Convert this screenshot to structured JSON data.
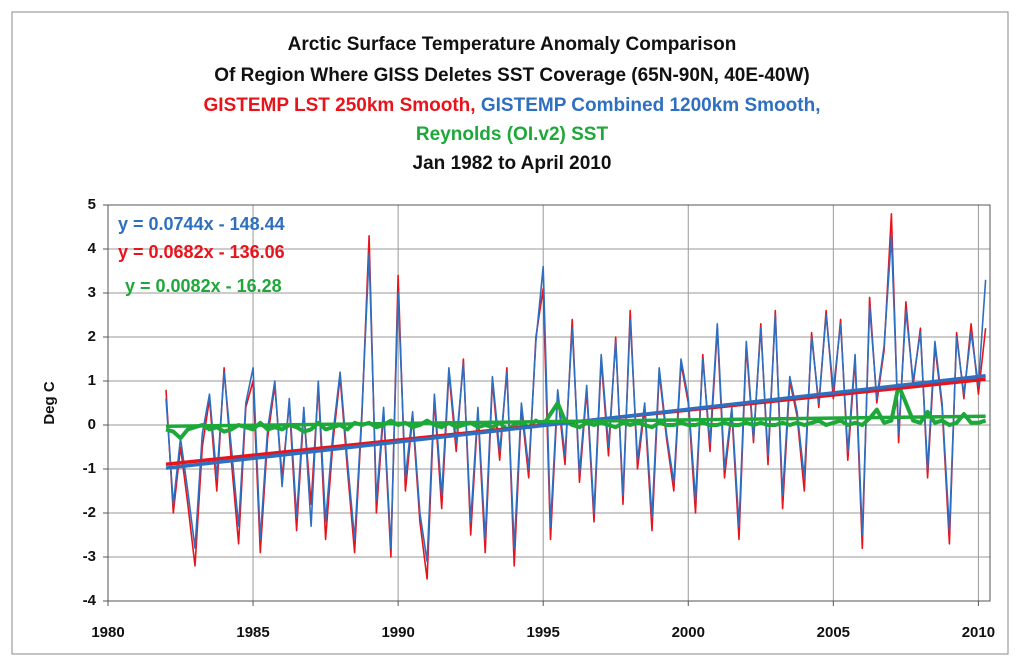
{
  "chart_data": {
    "type": "line",
    "title": [
      "Arctic Surface Temperature Anomaly Comparison",
      "Of Region Where GISS Deletes SST Coverage (65N-90N, 40E-40W)"
    ],
    "subtitle": "Jan 1982 to April 2010",
    "name_separator": ",",
    "ylabel": "Deg C",
    "xlim": [
      1980,
      2010.4
    ],
    "ylim": [
      -4,
      5
    ],
    "xticks": [
      1980,
      1985,
      1990,
      1995,
      2000,
      2005,
      2010
    ],
    "yticks": [
      -4,
      -3,
      -2,
      -1,
      0,
      1,
      2,
      3,
      4,
      5
    ],
    "grid": true,
    "x": [
      1982,
      1982.25,
      1982.5,
      1982.75,
      1983,
      1983.25,
      1983.5,
      1983.75,
      1984,
      1984.25,
      1984.5,
      1984.75,
      1985,
      1985.25,
      1985.5,
      1985.75,
      1986,
      1986.25,
      1986.5,
      1986.75,
      1987,
      1987.25,
      1987.5,
      1987.75,
      1988,
      1988.25,
      1988.5,
      1988.75,
      1989,
      1989.25,
      1989.5,
      1989.75,
      1990,
      1990.25,
      1990.5,
      1990.75,
      1991,
      1991.25,
      1991.5,
      1991.75,
      1992,
      1992.25,
      1992.5,
      1992.75,
      1993,
      1993.25,
      1993.5,
      1993.75,
      1994,
      1994.25,
      1994.5,
      1994.75,
      1995,
      1995.25,
      1995.5,
      1995.75,
      1996,
      1996.25,
      1996.5,
      1996.75,
      1997,
      1997.25,
      1997.5,
      1997.75,
      1998,
      1998.25,
      1998.5,
      1998.75,
      1999,
      1999.25,
      1999.5,
      1999.75,
      2000,
      2000.25,
      2000.5,
      2000.75,
      2001,
      2001.25,
      2001.5,
      2001.75,
      2002,
      2002.25,
      2002.5,
      2002.75,
      2003,
      2003.25,
      2003.5,
      2003.75,
      2004,
      2004.25,
      2004.5,
      2004.75,
      2005,
      2005.25,
      2005.5,
      2005.75,
      2006,
      2006.25,
      2006.5,
      2006.75,
      2007,
      2007.25,
      2007.5,
      2007.75,
      2008,
      2008.25,
      2008.5,
      2008.75,
      2009,
      2009.25,
      2009.5,
      2009.75,
      2010,
      2010.25
    ],
    "series": [
      {
        "name": "GISTEMP LST 250km Smooth",
        "color": "#e8141c",
        "values": [
          0.8,
          -2.0,
          -0.5,
          -1.8,
          -3.2,
          -0.5,
          0.6,
          -1.5,
          1.3,
          -0.8,
          -2.7,
          0.4,
          1.0,
          -2.9,
          -0.3,
          0.9,
          -1.2,
          0.5,
          -2.4,
          0.3,
          -1.8,
          0.9,
          -2.6,
          -0.4,
          1.1,
          -1.0,
          -2.9,
          0.2,
          4.3,
          -2.0,
          0.3,
          -3.0,
          3.4,
          -1.5,
          0.2,
          -2.2,
          -3.5,
          0.6,
          -1.9,
          1.2,
          -0.6,
          1.5,
          -2.5,
          0.3,
          -2.9,
          1.0,
          -0.8,
          1.3,
          -3.2,
          0.4,
          -1.2,
          2.0,
          3.1,
          -2.6,
          0.7,
          -0.9,
          2.4,
          -1.3,
          0.8,
          -2.2,
          1.5,
          -0.7,
          2.0,
          -1.8,
          2.6,
          -1.0,
          0.4,
          -2.4,
          1.2,
          -0.3,
          -1.5,
          1.4,
          0.5,
          -2.0,
          1.6,
          -0.6,
          2.2,
          -1.2,
          0.3,
          -2.6,
          1.8,
          -0.4,
          2.3,
          -0.9,
          2.6,
          -1.9,
          1.0,
          0.2,
          -1.5,
          2.1,
          0.4,
          2.6,
          0.6,
          2.4,
          -0.8,
          1.5,
          -2.8,
          2.9,
          0.5,
          1.7,
          4.8,
          -0.4,
          2.8,
          0.9,
          2.2,
          -1.2,
          1.8,
          0.4,
          -2.7,
          2.1,
          0.6,
          2.3,
          0.7,
          2.2
        ]
      },
      {
        "name": "GISTEMP Combined 1200km Smooth",
        "color": "#2e6fc0",
        "values": [
          0.6,
          -1.8,
          -0.3,
          -1.5,
          -2.8,
          -0.2,
          0.7,
          -1.2,
          1.2,
          -0.5,
          -2.3,
          0.5,
          1.3,
          -2.6,
          -0.1,
          1.0,
          -1.4,
          0.6,
          -2.1,
          0.4,
          -2.3,
          1.0,
          -2.2,
          -0.2,
          1.2,
          -0.8,
          -2.6,
          0.3,
          3.9,
          -1.7,
          0.4,
          -2.8,
          3.0,
          -1.2,
          0.3,
          -2.0,
          -3.1,
          0.7,
          -1.6,
          1.3,
          -0.4,
          1.4,
          -2.2,
          0.4,
          -2.6,
          1.1,
          -0.6,
          1.2,
          -2.8,
          0.5,
          -1.0,
          1.9,
          3.6,
          -2.3,
          0.8,
          -0.7,
          2.2,
          -1.1,
          0.9,
          -2.0,
          1.6,
          -0.5,
          1.9,
          -1.6,
          2.4,
          -0.8,
          0.5,
          -2.1,
          1.3,
          -0.2,
          -1.3,
          1.5,
          0.6,
          -1.7,
          1.5,
          -0.4,
          2.3,
          -1.0,
          0.4,
          -2.3,
          1.9,
          -0.3,
          2.2,
          -0.7,
          2.5,
          -1.6,
          1.1,
          0.3,
          -1.2,
          2.0,
          0.5,
          2.5,
          0.8,
          2.3,
          -0.6,
          1.6,
          -2.5,
          2.7,
          0.6,
          1.8,
          4.3,
          -0.2,
          2.6,
          1.0,
          2.1,
          -1.0,
          1.9,
          0.5,
          -2.4,
          2.0,
          0.7,
          2.1,
          0.9,
          3.3
        ]
      },
      {
        "name": "Reynolds (OI.v2) SST",
        "color": "#1fa83a",
        "values": [
          -0.1,
          -0.15,
          -0.3,
          -0.1,
          -0.05,
          0.0,
          -0.1,
          -0.05,
          -0.15,
          -0.1,
          0.0,
          -0.05,
          -0.1,
          0.05,
          -0.1,
          -0.05,
          -0.1,
          0.0,
          -0.05,
          -0.15,
          -0.1,
          0.05,
          -0.1,
          -0.05,
          0.0,
          -0.1,
          0.05,
          0.0,
          0.05,
          -0.05,
          0.0,
          0.1,
          0.0,
          0.05,
          -0.05,
          0.0,
          0.1,
          0.0,
          -0.05,
          0.05,
          -0.05,
          0.0,
          0.05,
          -0.05,
          0.0,
          -0.05,
          0.05,
          -0.1,
          0.0,
          0.05,
          -0.05,
          0.1,
          0.0,
          0.25,
          0.5,
          0.1,
          0.0,
          -0.05,
          0.05,
          0.0,
          0.05,
          0.0,
          -0.05,
          0.05,
          0.0,
          0.05,
          0.0,
          -0.05,
          0.05,
          0.0,
          0.0,
          0.05,
          0.0,
          0.0,
          0.05,
          0.0,
          0.0,
          0.05,
          0.0,
          0.0,
          0.05,
          0.0,
          0.05,
          0.0,
          0.0,
          0.05,
          0.0,
          0.05,
          0.0,
          0.05,
          0.1,
          0.0,
          0.05,
          0.1,
          0.0,
          0.05,
          0.0,
          0.15,
          0.35,
          0.05,
          0.1,
          0.9,
          0.5,
          0.1,
          0.05,
          0.3,
          0.05,
          0.1,
          0.0,
          0.05,
          0.25,
          0.05,
          0.05,
          0.1
        ]
      }
    ],
    "trendlines": [
      {
        "color": "#e8141c",
        "x": [
          1982,
          2010.25
        ],
        "values": [
          -0.89,
          1.04
        ]
      },
      {
        "color": "#2e6fc0",
        "x": [
          1982,
          2010.25
        ],
        "values": [
          -0.98,
          1.12
        ]
      },
      {
        "color": "#1fa83a",
        "x": [
          1982,
          2010.25
        ],
        "values": [
          -0.03,
          0.2
        ]
      }
    ],
    "annotations": [
      {
        "text": "y = 0.0744x - 148.44",
        "color": "#2e6fc0"
      },
      {
        "text": "y = 0.0682x - 136.06",
        "color": "#e8141c"
      },
      {
        "text": "y = 0.0082x - 16.28",
        "color": "#1fa83a"
      }
    ]
  }
}
